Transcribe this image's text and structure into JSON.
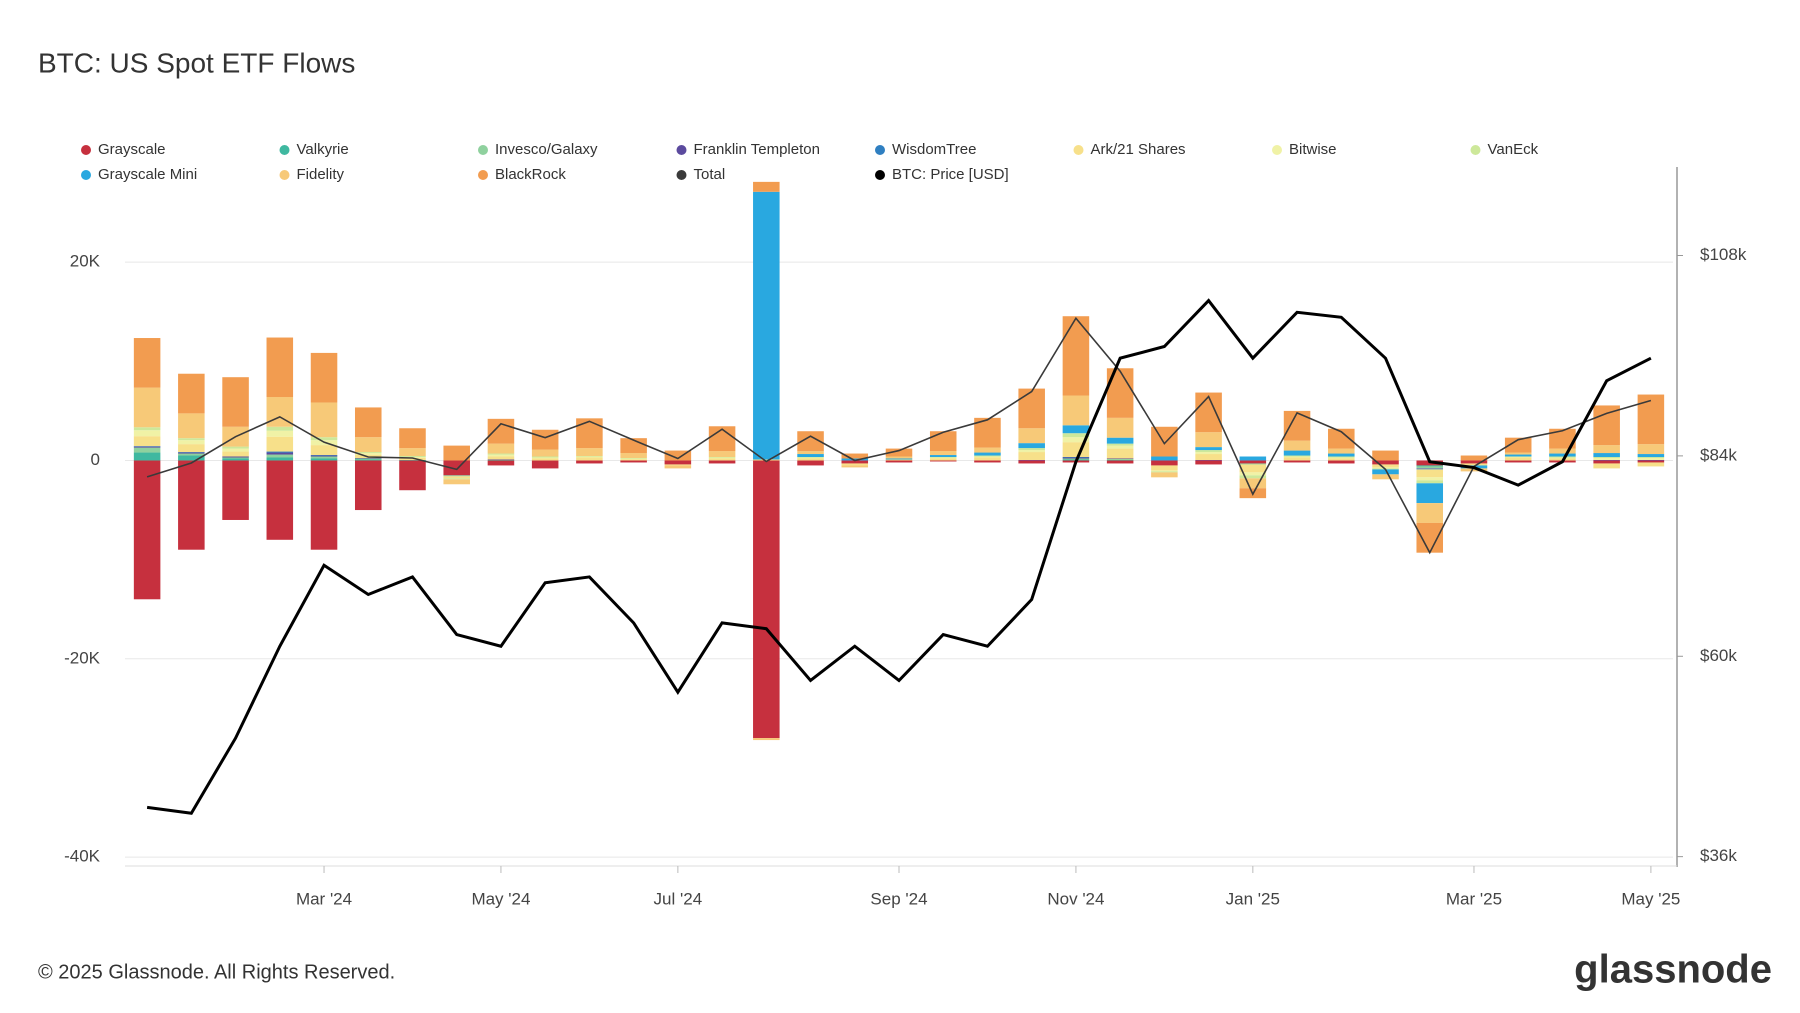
{
  "chart_data": {
    "type": "bar",
    "title": "BTC: US Spot ETF Flows",
    "footer": "© 2025 Glassnode. All Rights Reserved.",
    "brand": "glassnode",
    "categories": [
      null,
      null,
      null,
      null,
      "Mar '24",
      null,
      null,
      null,
      "May '24",
      null,
      null,
      null,
      "Jul '24",
      null,
      null,
      null,
      null,
      "Sep '24",
      null,
      null,
      null,
      "Nov '24",
      null,
      null,
      null,
      "Jan '25",
      null,
      null,
      null,
      null,
      "Mar '25",
      null,
      null,
      null,
      "May '25"
    ],
    "ylim": [
      -40800,
      29600
    ],
    "yticks": [
      {
        "value": -40000,
        "label": "-40K"
      },
      {
        "value": -20000,
        "label": "-20K"
      },
      0,
      {
        "value": 20000,
        "label": "20K"
      }
    ],
    "y2lim": [
      35000,
      118600
    ],
    "y2ticks": [
      {
        "value": 36000,
        "label": "$36k"
      },
      {
        "value": 60000,
        "label": "$60k"
      },
      {
        "value": 84000,
        "label": "$84k"
      },
      {
        "value": 108000,
        "label": "$108k"
      }
    ],
    "grid": true,
    "series": [
      {
        "name": "Grayscale",
        "color": "#c6303e",
        "type": "bar",
        "values": [
          -14000,
          -9000,
          -6000,
          -8000,
          -9000,
          -5000,
          -3000,
          -1500,
          -500,
          -800,
          -300,
          -200,
          -400,
          -300,
          -28000,
          -500,
          -300,
          -200,
          -100,
          -200,
          -300,
          -200,
          -300,
          -500,
          -400,
          -300,
          -200,
          -300,
          -400,
          -500,
          -300,
          -200,
          -200,
          -300,
          -200
        ]
      },
      {
        "name": "Valkyrie",
        "color": "#3fb8a0",
        "type": "bar",
        "values": [
          800,
          500,
          200,
          300,
          200,
          100,
          50,
          0,
          50,
          0,
          0,
          0,
          0,
          0,
          0,
          0,
          0,
          0,
          0,
          0,
          0,
          100,
          50,
          0,
          0,
          0,
          0,
          0,
          0,
          -100,
          0,
          0,
          0,
          0,
          0
        ]
      },
      {
        "name": "Invesco/Galaxy",
        "color": "#8fd19e",
        "type": "bar",
        "values": [
          500,
          200,
          100,
          300,
          200,
          100,
          0,
          -100,
          0,
          0,
          0,
          0,
          0,
          0,
          0,
          0,
          0,
          0,
          0,
          0,
          0,
          100,
          100,
          0,
          0,
          -100,
          0,
          0,
          0,
          -200,
          0,
          0,
          0,
          0,
          0
        ]
      },
      {
        "name": "Franklin Templeton",
        "color": "#5b4a9e",
        "type": "bar",
        "values": [
          100,
          100,
          100,
          200,
          100,
          50,
          0,
          0,
          50,
          0,
          0,
          0,
          0,
          0,
          0,
          0,
          0,
          0,
          0,
          0,
          50,
          100,
          50,
          0,
          50,
          0,
          0,
          0,
          0,
          -50,
          0,
          0,
          0,
          50,
          50
        ]
      },
      {
        "name": "WisdomTree",
        "color": "#2f7fc1",
        "type": "bar",
        "values": [
          50,
          50,
          0,
          100,
          50,
          0,
          0,
          0,
          0,
          0,
          0,
          0,
          0,
          0,
          0,
          0,
          0,
          0,
          0,
          0,
          0,
          50,
          0,
          0,
          0,
          0,
          0,
          0,
          0,
          -50,
          0,
          0,
          0,
          0,
          0
        ]
      },
      {
        "name": "Ark/21 Shares",
        "color": "#f7e08a",
        "type": "bar",
        "values": [
          1000,
          800,
          500,
          1500,
          1000,
          300,
          200,
          -200,
          300,
          200,
          300,
          100,
          -100,
          200,
          100,
          200,
          -200,
          100,
          200,
          300,
          800,
          1500,
          1000,
          -500,
          600,
          -800,
          300,
          200,
          -300,
          -800,
          -200,
          300,
          200,
          -500,
          -400
        ]
      },
      {
        "name": "Bitwise",
        "color": "#f0f2a6",
        "type": "bar",
        "values": [
          600,
          400,
          300,
          600,
          500,
          200,
          100,
          0,
          200,
          100,
          100,
          100,
          0,
          100,
          0,
          100,
          0,
          0,
          100,
          100,
          200,
          500,
          300,
          -100,
          200,
          -300,
          100,
          100,
          -100,
          -300,
          0,
          100,
          100,
          200,
          200
        ]
      },
      {
        "name": "VanEck",
        "color": "#cde89a",
        "type": "bar",
        "values": [
          300,
          200,
          200,
          400,
          300,
          100,
          100,
          -100,
          100,
          100,
          50,
          50,
          0,
          50,
          0,
          50,
          0,
          0,
          50,
          100,
          200,
          400,
          200,
          -100,
          200,
          -300,
          100,
          100,
          -100,
          -300,
          0,
          0,
          100,
          100,
          100
        ]
      },
      {
        "name": "Grayscale Mini",
        "color": "#29a8e0",
        "type": "bar",
        "values": [
          0,
          0,
          0,
          0,
          0,
          0,
          0,
          0,
          0,
          0,
          0,
          0,
          0,
          0,
          27000,
          300,
          200,
          100,
          200,
          300,
          500,
          800,
          600,
          400,
          300,
          400,
          500,
          300,
          -500,
          -2000,
          -300,
          200,
          300,
          400,
          300
        ]
      },
      {
        "name": "Fidelity",
        "color": "#f7c978",
        "type": "bar",
        "values": [
          4000,
          2500,
          2000,
          3000,
          3500,
          1500,
          800,
          -500,
          1000,
          700,
          800,
          500,
          -300,
          600,
          -200,
          300,
          -200,
          200,
          400,
          500,
          1500,
          3000,
          2000,
          -500,
          1500,
          -1000,
          1000,
          500,
          -500,
          -2000,
          -300,
          200,
          500,
          800,
          1000
        ]
      },
      {
        "name": "BlackRock",
        "color": "#f29c50",
        "type": "bar",
        "values": [
          5000,
          4000,
          5000,
          6000,
          5000,
          3000,
          2000,
          1500,
          2500,
          2000,
          3000,
          1500,
          1000,
          2500,
          1000,
          2000,
          500,
          800,
          2000,
          3000,
          4000,
          8000,
          5000,
          3000,
          4000,
          -1000,
          3000,
          2000,
          1000,
          -3000,
          500,
          1500,
          2000,
          4000,
          5000
        ]
      },
      {
        "name": "Total",
        "color": "#3a3a3a",
        "type": "line",
        "values": [
          -1650,
          -250,
          2400,
          4400,
          1850,
          350,
          250,
          -900,
          3700,
          2300,
          3950,
          2050,
          200,
          3150,
          -100,
          2450,
          0,
          1000,
          2850,
          4100,
          6950,
          14350,
          9000,
          1700,
          6450,
          -3400,
          4800,
          2900,
          -900,
          -9300,
          -600,
          2100,
          3000,
          4750,
          6050
        ]
      },
      {
        "name": "BTC: Price [USD]",
        "color": "#000000",
        "type": "line",
        "axis": "y2",
        "values": [
          41900,
          41200,
          50200,
          61200,
          70900,
          67400,
          69500,
          62600,
          61200,
          68800,
          69500,
          64000,
          55700,
          64000,
          63300,
          57100,
          61200,
          57100,
          62600,
          61200,
          66800,
          83300,
          95700,
          97100,
          102600,
          95700,
          101200,
          100600,
          95700,
          83300,
          82600,
          80500,
          83300,
          93000,
          95700
        ]
      }
    ]
  }
}
